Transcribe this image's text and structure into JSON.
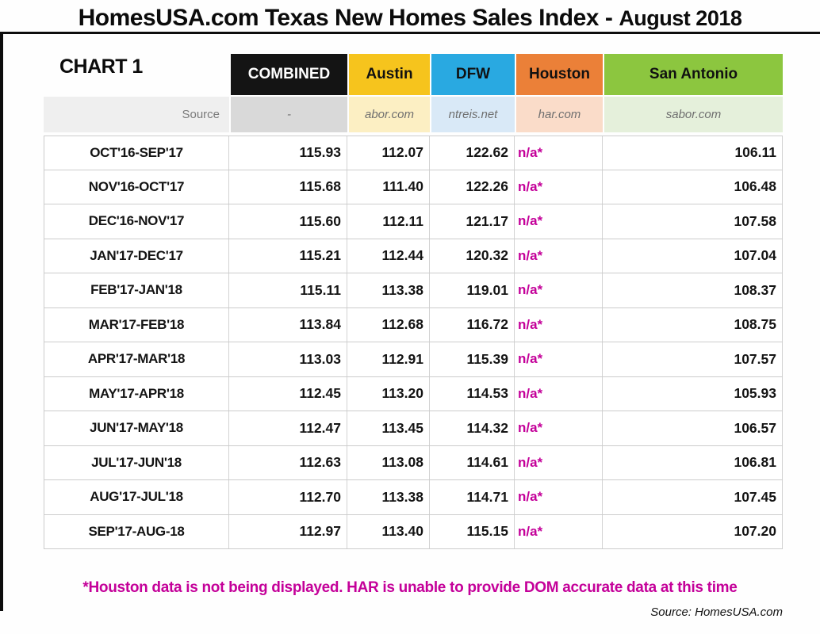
{
  "title": {
    "main": "HomesUSA.com Texas New Homes Sales Index -",
    "date": "August 2018"
  },
  "chart_label": "CHART 1",
  "source_row_label": "Source",
  "footnote": "*Houston data is not being displayed. HAR is unable to provide DOM accurate data at this time",
  "credit": "Source: HomesUSA.com",
  "colors": {
    "combined_bg": "#141414",
    "combined_fg": "#ffffff",
    "austin_bg": "#f6c41d",
    "dfw_bg": "#29a9e1",
    "houston_bg": "#eb8038",
    "san_antonio_bg": "#8cc63f",
    "header_fg_dark": "#111111",
    "source_label_bg": "#efefef",
    "combined_source_bg": "#d9d9d9",
    "austin_source_bg": "#fcefc3",
    "dfw_source_bg": "#d9e9f7",
    "houston_source_bg": "#fadcc9",
    "san_antonio_source_bg": "#e5f0db",
    "na_magenta": "#c40099",
    "footnote_magenta": "#c40099"
  },
  "chart_data": {
    "type": "table",
    "title": "HomesUSA.com Texas New Homes Sales Index - August 2018",
    "columns": [
      {
        "label": "COMBINED",
        "source": "-"
      },
      {
        "label": "Austin",
        "source": "abor.com"
      },
      {
        "label": "DFW",
        "source": "ntreis.net"
      },
      {
        "label": "Houston",
        "source": "har.com"
      },
      {
        "label": "San Antonio",
        "source": "sabor.com"
      }
    ],
    "rows": [
      {
        "period": "OCT'16-SEP'17",
        "values": [
          "115.93",
          "112.07",
          "122.62",
          "n/a*",
          "106.11"
        ]
      },
      {
        "period": "NOV'16-OCT'17",
        "values": [
          "115.68",
          "111.40",
          "122.26",
          "n/a*",
          "106.48"
        ]
      },
      {
        "period": "DEC'16-NOV'17",
        "values": [
          "115.60",
          "112.11",
          "121.17",
          "n/a*",
          "107.58"
        ]
      },
      {
        "period": "JAN'17-DEC'17",
        "values": [
          "115.21",
          "112.44",
          "120.32",
          "n/a*",
          "107.04"
        ]
      },
      {
        "period": "FEB'17-JAN'18",
        "values": [
          "115.11",
          "113.38",
          "119.01",
          "n/a*",
          "108.37"
        ]
      },
      {
        "period": "MAR'17-FEB'18",
        "values": [
          "113.84",
          "112.68",
          "116.72",
          "n/a*",
          "108.75"
        ]
      },
      {
        "period": "APR'17-MAR'18",
        "values": [
          "113.03",
          "112.91",
          "115.39",
          "n/a*",
          "107.57"
        ]
      },
      {
        "period": "MAY'17-APR'18",
        "values": [
          "112.45",
          "113.20",
          "114.53",
          "n/a*",
          "105.93"
        ]
      },
      {
        "period": "JUN'17-MAY'18",
        "values": [
          "112.47",
          "113.45",
          "114.32",
          "n/a*",
          "106.57"
        ]
      },
      {
        "period": "JUL'17-JUN'18",
        "values": [
          "112.63",
          "113.08",
          "114.61",
          "n/a*",
          "106.81"
        ]
      },
      {
        "period": "AUG'17-JUL'18",
        "values": [
          "112.70",
          "113.38",
          "114.71",
          "n/a*",
          "107.45"
        ]
      },
      {
        "period": "SEP'17-AUG-18",
        "values": [
          "112.97",
          "113.40",
          "115.15",
          "n/a*",
          "107.20"
        ]
      }
    ]
  }
}
